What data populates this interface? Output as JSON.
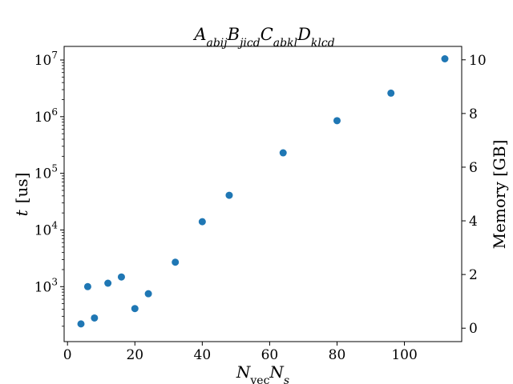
{
  "chart_data": {
    "type": "scatter",
    "title": {
      "base": [
        "A",
        "B",
        "C",
        "D"
      ],
      "subs": [
        "abij",
        "jicd",
        "abkl",
        "klcd"
      ]
    },
    "xlabel": {
      "main": "N",
      "sub1": "vec",
      "main2": "N",
      "sub2": "s"
    },
    "ylabel": {
      "var": "t",
      "unit": "[us]"
    },
    "y2label": "Memory [GB]",
    "xlim": [
      -1,
      117
    ],
    "ylim_log10": [
      2.03,
      7.24
    ],
    "y2lim": [
      -0.5,
      10.5
    ],
    "yscale": "log",
    "grid": false,
    "x_ticks": [
      0,
      20,
      40,
      60,
      80,
      100
    ],
    "x_tick_labels": [
      "0",
      "20",
      "40",
      "60",
      "80",
      "100"
    ],
    "y_ticks_log10": [
      3,
      4,
      5,
      6,
      7
    ],
    "y_tick_labels": [
      {
        "base": "10",
        "exp": "3"
      },
      {
        "base": "10",
        "exp": "4"
      },
      {
        "base": "10",
        "exp": "5"
      },
      {
        "base": "10",
        "exp": "6"
      },
      {
        "base": "10",
        "exp": "7"
      }
    ],
    "y2_ticks": [
      0,
      2,
      4,
      6,
      8,
      10
    ],
    "y2_tick_labels": [
      "0",
      "2",
      "4",
      "6",
      "8",
      "10"
    ],
    "series": [
      {
        "color": "#1f77b4",
        "x": [
          4,
          6,
          8,
          12,
          16,
          20,
          24,
          32,
          40,
          48,
          64,
          80,
          96,
          112
        ],
        "y": [
          220,
          1000,
          280,
          1150,
          1480,
          410,
          750,
          2700,
          14000,
          41000,
          230000,
          850000,
          2600000,
          10500000
        ]
      }
    ]
  }
}
